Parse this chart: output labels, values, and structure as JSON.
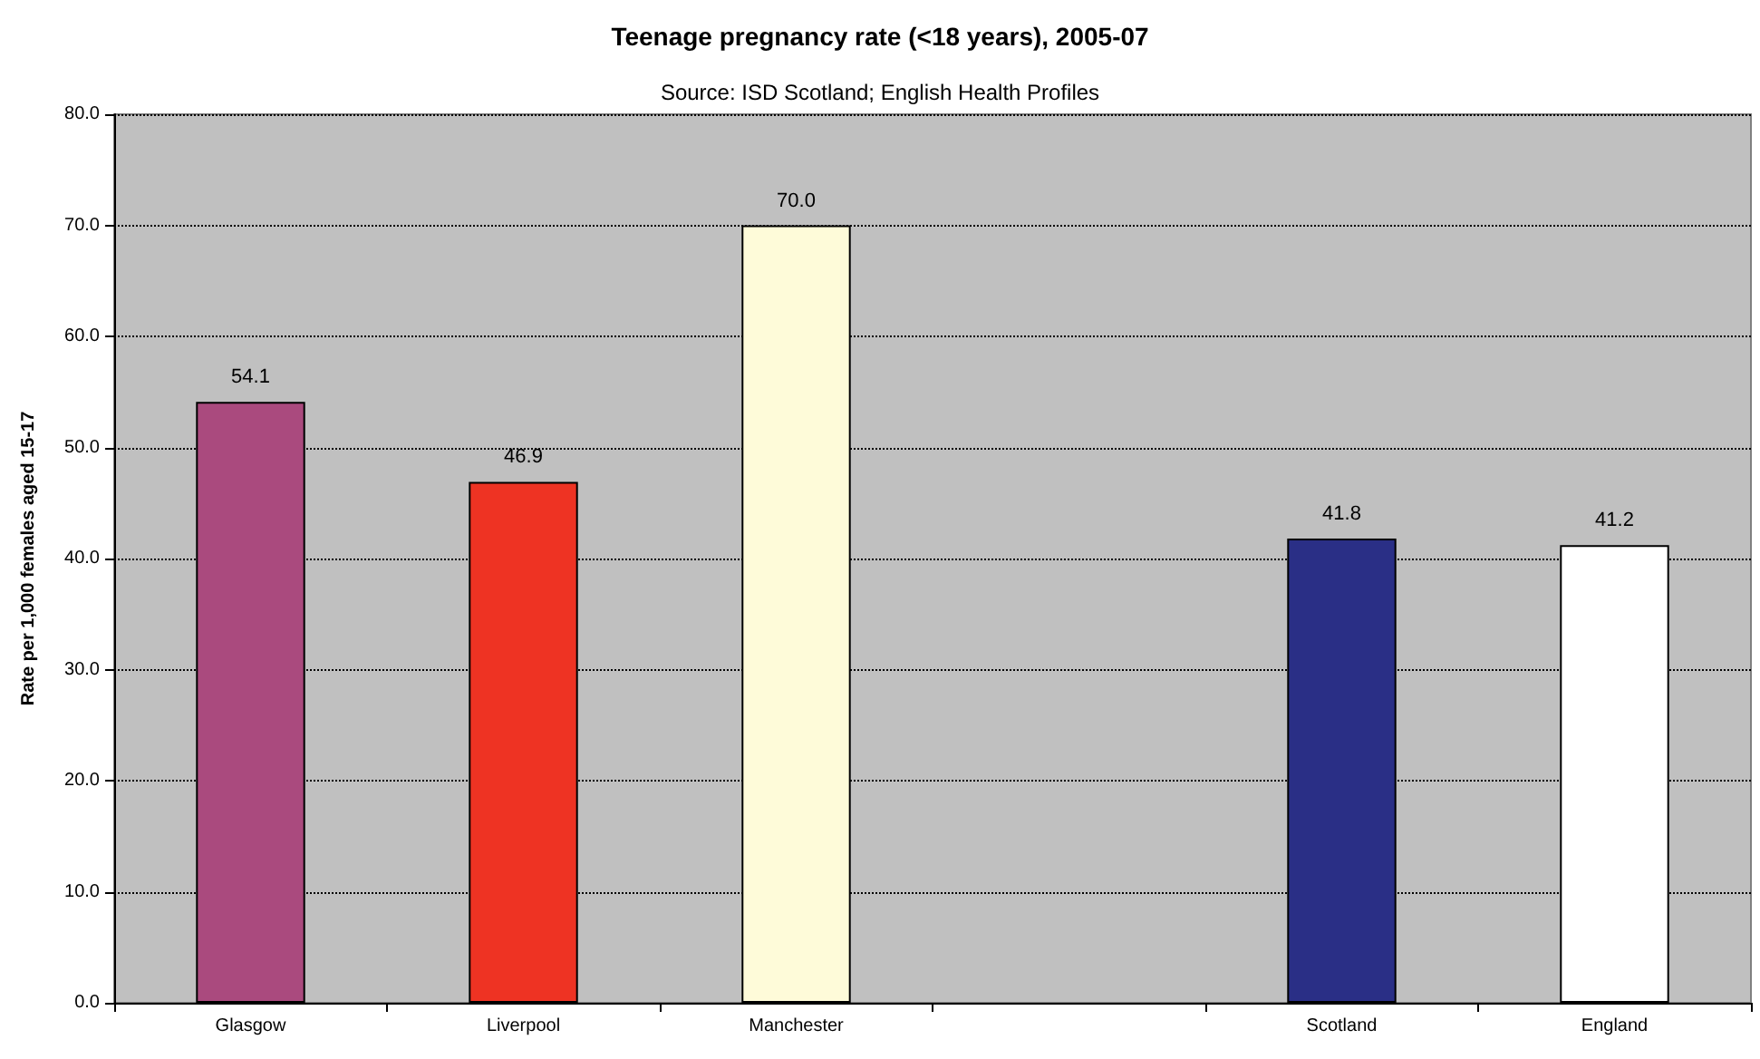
{
  "chart_data": {
    "type": "bar",
    "title": "Teenage pregnancy rate (<18 years), 2005-07",
    "subtitle": "Source: ISD Scotland; English Health Profiles",
    "ylabel": "Rate per 1,000 females aged 15-17",
    "categories": [
      "Glasgow",
      "Liverpool",
      "Manchester",
      null,
      "Scotland",
      "England"
    ],
    "values": [
      54.1,
      46.9,
      70.0,
      null,
      41.8,
      41.2
    ],
    "colors": [
      "#aa4a7e",
      "#ee3323",
      "#fefbd9",
      null,
      "#2a2f86",
      "#ffffff"
    ],
    "value_labels": [
      "54.1",
      "46.9",
      "70.0",
      null,
      "41.8",
      "41.2"
    ],
    "ylim": [
      0,
      80
    ],
    "yticks": [
      {
        "value": 0,
        "label": "0.0"
      },
      {
        "value": 10,
        "label": "10.0"
      },
      {
        "value": 20,
        "label": "20.0"
      },
      {
        "value": 30,
        "label": "30.0"
      },
      {
        "value": 40,
        "label": "40.0"
      },
      {
        "value": 50,
        "label": "50.0"
      },
      {
        "value": 60,
        "label": "60.0"
      },
      {
        "value": 70,
        "label": "70.0"
      },
      {
        "value": 80,
        "label": "80.0"
      }
    ],
    "grid": "y"
  }
}
